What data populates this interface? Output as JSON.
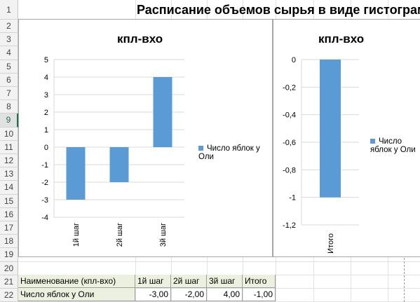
{
  "sheet": {
    "title": "Расписание объемов сырья в виде гистограмм",
    "row_numbers": [
      "1",
      "2",
      "3",
      "4",
      "5",
      "6",
      "7",
      "8",
      "9",
      "10",
      "11",
      "12",
      "13",
      "14",
      "15",
      "16",
      "17",
      "18",
      "19",
      "20",
      "21",
      "22"
    ],
    "selected_row": "9"
  },
  "table": {
    "header": [
      "Наименование (кпл-вхо)",
      "1й  шаг",
      "2й  шаг",
      "3й  шаг",
      "Итого"
    ],
    "row": [
      "Число яблок у Оли",
      "-3,00",
      "-2,00",
      "4,00",
      "-1,00"
    ]
  },
  "colors": {
    "bar": "#5b9bd5",
    "grid": "#d9d9d9",
    "header_fill": "#ebf1de"
  },
  "chart_data": [
    {
      "type": "bar",
      "title": "кпл-вхо",
      "categories": [
        "1й  шаг",
        "2й  шаг",
        "3й  шаг"
      ],
      "series": [
        {
          "name": "Число яблок у Оли",
          "values": [
            -3,
            -2,
            4
          ]
        }
      ],
      "ylim": [
        -4,
        5
      ],
      "yticks": [
        "5",
        "4",
        "3",
        "2",
        "1",
        "0",
        "-1",
        "-2",
        "-3",
        "-4"
      ],
      "grid": true,
      "legend": "right"
    },
    {
      "type": "bar",
      "title": "кпл-вхо",
      "categories": [
        "Итого"
      ],
      "series": [
        {
          "name": "Число яблок у Оли",
          "values": [
            -1
          ]
        }
      ],
      "ylim": [
        -1.2,
        0
      ],
      "yticks": [
        "0",
        "-0,2",
        "-0,4",
        "-0,6",
        "-0,8",
        "-1",
        "-1,2"
      ],
      "grid": true,
      "legend": "right"
    }
  ]
}
